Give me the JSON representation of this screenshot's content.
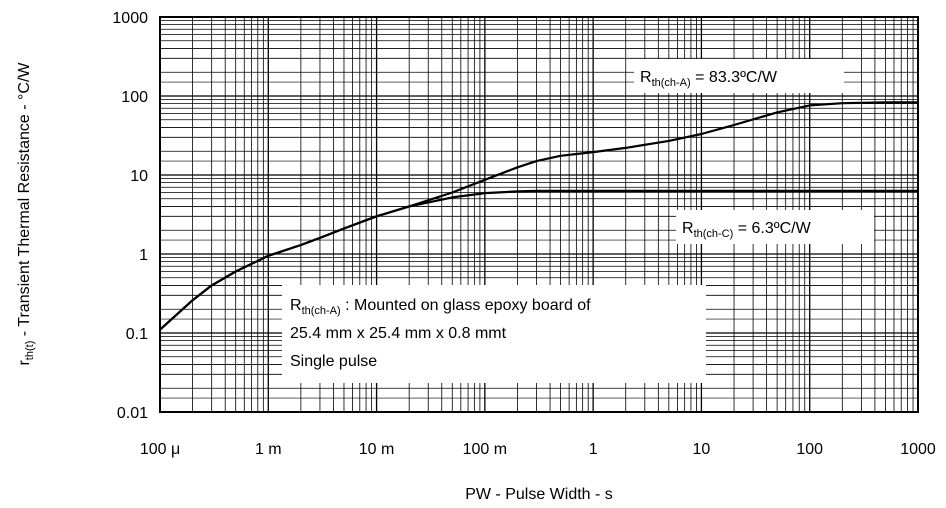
{
  "chart_data": {
    "type": "line",
    "xscale": "log",
    "yscale": "log",
    "xlim": [
      0.0001,
      1000
    ],
    "ylim": [
      0.01,
      1000
    ],
    "grid": true,
    "xlabel": "PW - Pulse Width - s",
    "ylabel": {
      "main": "r",
      "sub": "th(t)",
      "rest": " - Transient Thermal Resistance - °C/W"
    },
    "x_ticks": [
      {
        "value": 0.0001,
        "label": "100 μ"
      },
      {
        "value": 0.001,
        "label": "1 m"
      },
      {
        "value": 0.01,
        "label": "10 m"
      },
      {
        "value": 0.1,
        "label": "100 m"
      },
      {
        "value": 1,
        "label": "1"
      },
      {
        "value": 10,
        "label": "10"
      },
      {
        "value": 100,
        "label": "100"
      },
      {
        "value": 1000,
        "label": "1000"
      }
    ],
    "y_ticks": [
      {
        "value": 0.01,
        "label": "0.01"
      },
      {
        "value": 0.1,
        "label": "0.1"
      },
      {
        "value": 1,
        "label": "1"
      },
      {
        "value": 10,
        "label": "10"
      },
      {
        "value": 100,
        "label": "100"
      },
      {
        "value": 1000,
        "label": "1000"
      }
    ],
    "series": [
      {
        "x": [
          0.0001,
          0.0002,
          0.0003,
          0.0005,
          0.001,
          0.002,
          0.003,
          0.005,
          0.01,
          0.02,
          0.05,
          0.1,
          0.2,
          0.3,
          0.5,
          1,
          2,
          5,
          10,
          20,
          50,
          100,
          200,
          500,
          1000
        ],
        "y": [
          0.11,
          0.26,
          0.4,
          0.6,
          0.95,
          1.3,
          1.6,
          2.1,
          3.0,
          4.0,
          6.0,
          8.7,
          12.5,
          15.0,
          17.5,
          19.5,
          22.0,
          27.0,
          33.0,
          43.0,
          62.0,
          76.0,
          81.0,
          83.0,
          83.3
        ]
      },
      {
        "x": [
          0.0001,
          0.0002,
          0.0003,
          0.0005,
          0.001,
          0.002,
          0.003,
          0.005,
          0.01,
          0.02,
          0.05,
          0.1,
          0.2,
          0.3,
          0.5,
          1,
          10,
          100,
          1000
        ],
        "y": [
          0.11,
          0.26,
          0.4,
          0.6,
          0.95,
          1.3,
          1.6,
          2.1,
          3.0,
          4.0,
          5.2,
          5.9,
          6.2,
          6.3,
          6.3,
          6.3,
          6.3,
          6.3,
          6.3
        ]
      }
    ],
    "annotations": {
      "rth_ca": {
        "main": "R",
        "sub": "th(ch-A)",
        "rest": " = 83.3ºC/W"
      },
      "rth_cc": {
        "main": "R",
        "sub": "th(ch-C)",
        "rest": " = 6.3ºC/W"
      },
      "note": {
        "line1_main": "R",
        "line1_sub": "th(ch-A)",
        "line1_rest": " : Mounted on glass epoxy board of",
        "line2": "25.4 mm x 25.4 mm x 0.8 mmt",
        "line3": "Single pulse"
      }
    }
  }
}
